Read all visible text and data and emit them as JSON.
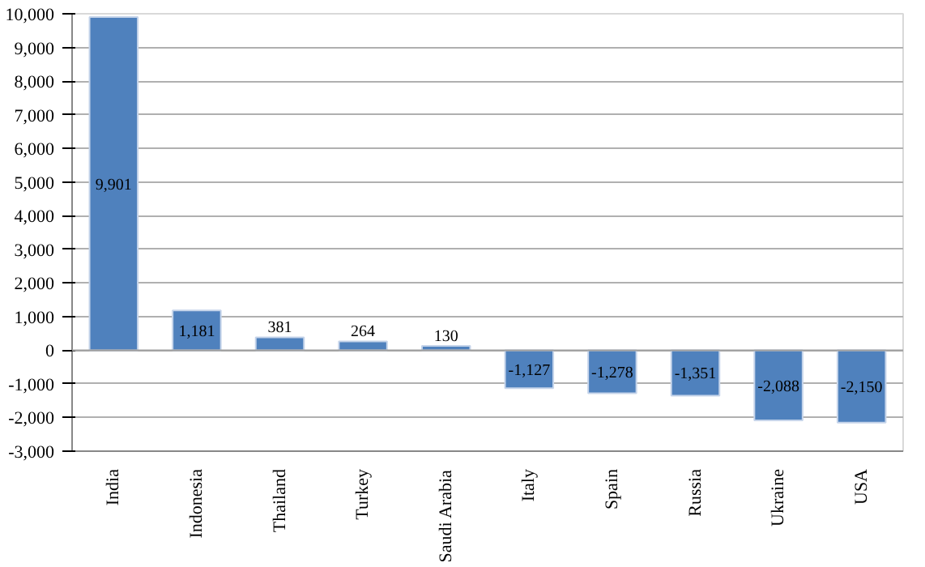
{
  "chart_data": {
    "type": "bar",
    "categories": [
      "India",
      "Indonesia",
      "Thailand",
      "Turkey",
      "Saudi Arabia",
      "Italy",
      "Spain",
      "Russia",
      "Ukraine",
      "USA"
    ],
    "values": [
      9901,
      1181,
      381,
      264,
      130,
      -1127,
      -1278,
      -1351,
      -2088,
      -2150
    ],
    "value_labels": [
      "9,901",
      "1,181",
      "381",
      "264",
      "130",
      "-1,127",
      "-1,278",
      "-1,351",
      "-2,088",
      "-2,150"
    ],
    "color": "#4f81bd",
    "ylim": [
      -3000,
      10000
    ],
    "yticks": [
      {
        "value": -3000,
        "label": "-3,000"
      },
      {
        "value": -2000,
        "label": "-2,000"
      },
      {
        "value": -1000,
        "label": "-1,000"
      },
      0,
      {
        "value": 1000,
        "label": "1,000"
      },
      {
        "value": 2000,
        "label": "2,000"
      },
      {
        "value": 3000,
        "label": "3,000"
      },
      {
        "value": 4000,
        "label": "4,000"
      },
      {
        "value": 5000,
        "label": "5,000"
      },
      {
        "value": 6000,
        "label": "6,000"
      },
      {
        "value": 7000,
        "label": "7,000"
      },
      {
        "value": 8000,
        "label": "8,000"
      },
      {
        "value": 9000,
        "label": "9,000"
      },
      {
        "value": 10000,
        "label": "10,000"
      }
    ],
    "grid": "y"
  }
}
